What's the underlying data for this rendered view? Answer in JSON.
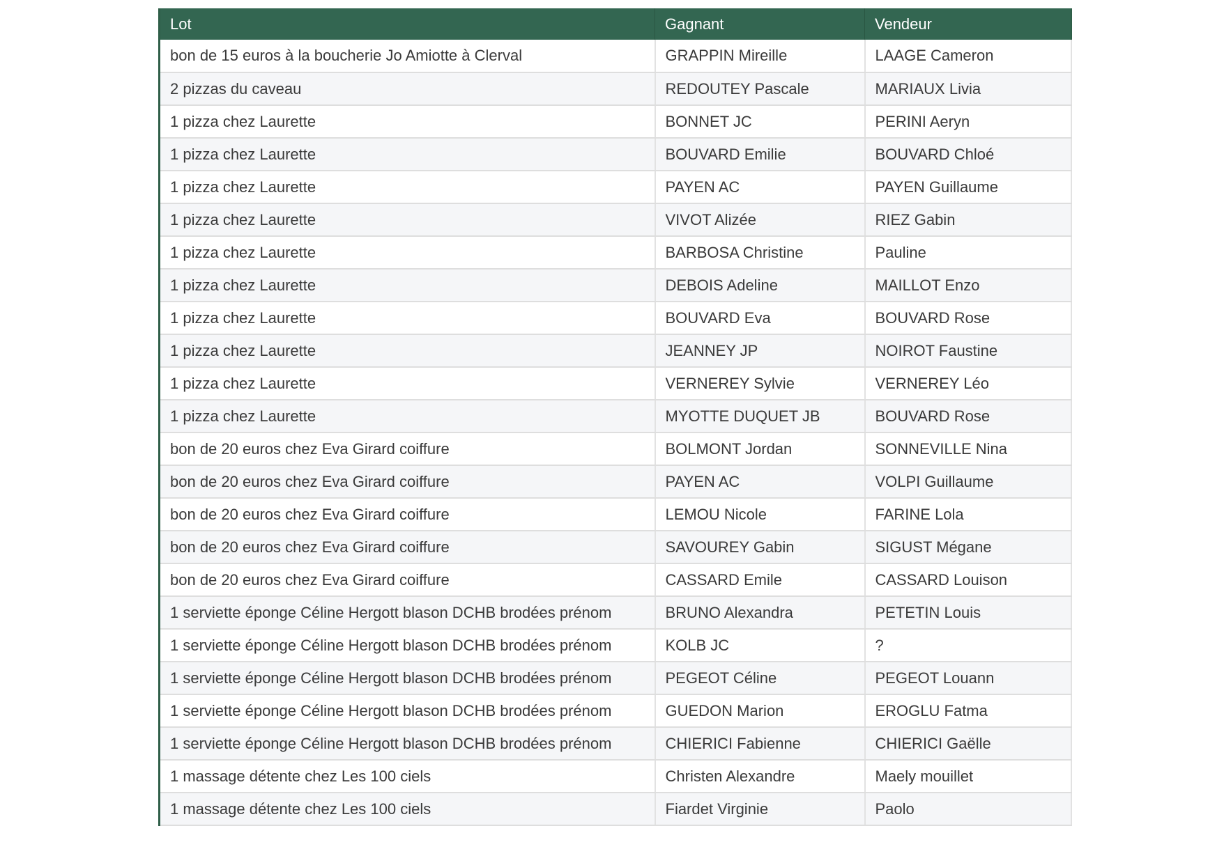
{
  "table": {
    "headers": [
      "Lot",
      "Gagnant",
      "Vendeur"
    ],
    "rows": [
      [
        "bon de 15 euros à la boucherie Jo Amiotte à Clerval",
        "GRAPPIN Mireille",
        "LAAGE Cameron"
      ],
      [
        "2 pizzas du caveau",
        "REDOUTEY Pascale",
        "MARIAUX Livia"
      ],
      [
        "1 pizza chez Laurette",
        "BONNET JC",
        "PERINI Aeryn"
      ],
      [
        "1 pizza chez Laurette",
        "BOUVARD Emilie",
        "BOUVARD Chloé"
      ],
      [
        "1 pizza chez Laurette",
        "PAYEN AC",
        "PAYEN Guillaume"
      ],
      [
        "1 pizza chez Laurette",
        "VIVOT Alizée",
        "RIEZ Gabin"
      ],
      [
        "1 pizza chez Laurette",
        "BARBOSA Christine",
        "Pauline"
      ],
      [
        "1 pizza chez Laurette",
        "DEBOIS Adeline",
        "MAILLOT Enzo"
      ],
      [
        "1 pizza chez Laurette",
        "BOUVARD Eva",
        "BOUVARD Rose"
      ],
      [
        "1 pizza chez Laurette",
        "JEANNEY JP",
        "NOIROT Faustine"
      ],
      [
        "1 pizza chez Laurette",
        "VERNEREY Sylvie",
        "VERNEREY Léo"
      ],
      [
        "1 pizza chez Laurette",
        "MYOTTE DUQUET JB",
        "BOUVARD Rose"
      ],
      [
        "bon de 20 euros chez Eva Girard coiffure",
        "BOLMONT Jordan",
        "SONNEVILLE Nina"
      ],
      [
        "bon de 20 euros chez Eva Girard coiffure",
        "PAYEN AC",
        "VOLPI Guillaume"
      ],
      [
        "bon de 20 euros chez Eva Girard coiffure",
        "LEMOU Nicole",
        "FARINE Lola"
      ],
      [
        "bon de 20 euros chez Eva Girard coiffure",
        "SAVOUREY Gabin",
        "SIGUST Mégane"
      ],
      [
        "bon de 20 euros chez Eva Girard coiffure",
        "CASSARD Emile",
        "CASSARD Louison"
      ],
      [
        "1 serviette éponge Céline Hergott blason DCHB brodées prénom",
        "BRUNO Alexandra",
        "PETETIN Louis"
      ],
      [
        "1 serviette éponge Céline Hergott blason DCHB brodées prénom",
        "KOLB JC",
        "?"
      ],
      [
        "1 serviette éponge Céline Hergott blason DCHB brodées prénom",
        "PEGEOT Céline",
        "PEGEOT Louann"
      ],
      [
        "1 serviette éponge Céline Hergott blason DCHB brodées prénom",
        "GUEDON Marion",
        "EROGLU Fatma"
      ],
      [
        "1 serviette éponge Céline Hergott blason DCHB brodées prénom",
        "CHIERICI Fabienne",
        "CHIERICI Gaëlle"
      ],
      [
        "1 massage détente chez Les 100 ciels",
        "Christen Alexandre",
        "Maely mouillet"
      ],
      [
        "1 massage détente chez Les 100 ciels",
        "Fiardet Virginie",
        "Paolo"
      ]
    ]
  },
  "colors": {
    "header_bg": "#336651",
    "header_text": "#ffffff",
    "alt_row_bg": "#f5f6f8"
  }
}
